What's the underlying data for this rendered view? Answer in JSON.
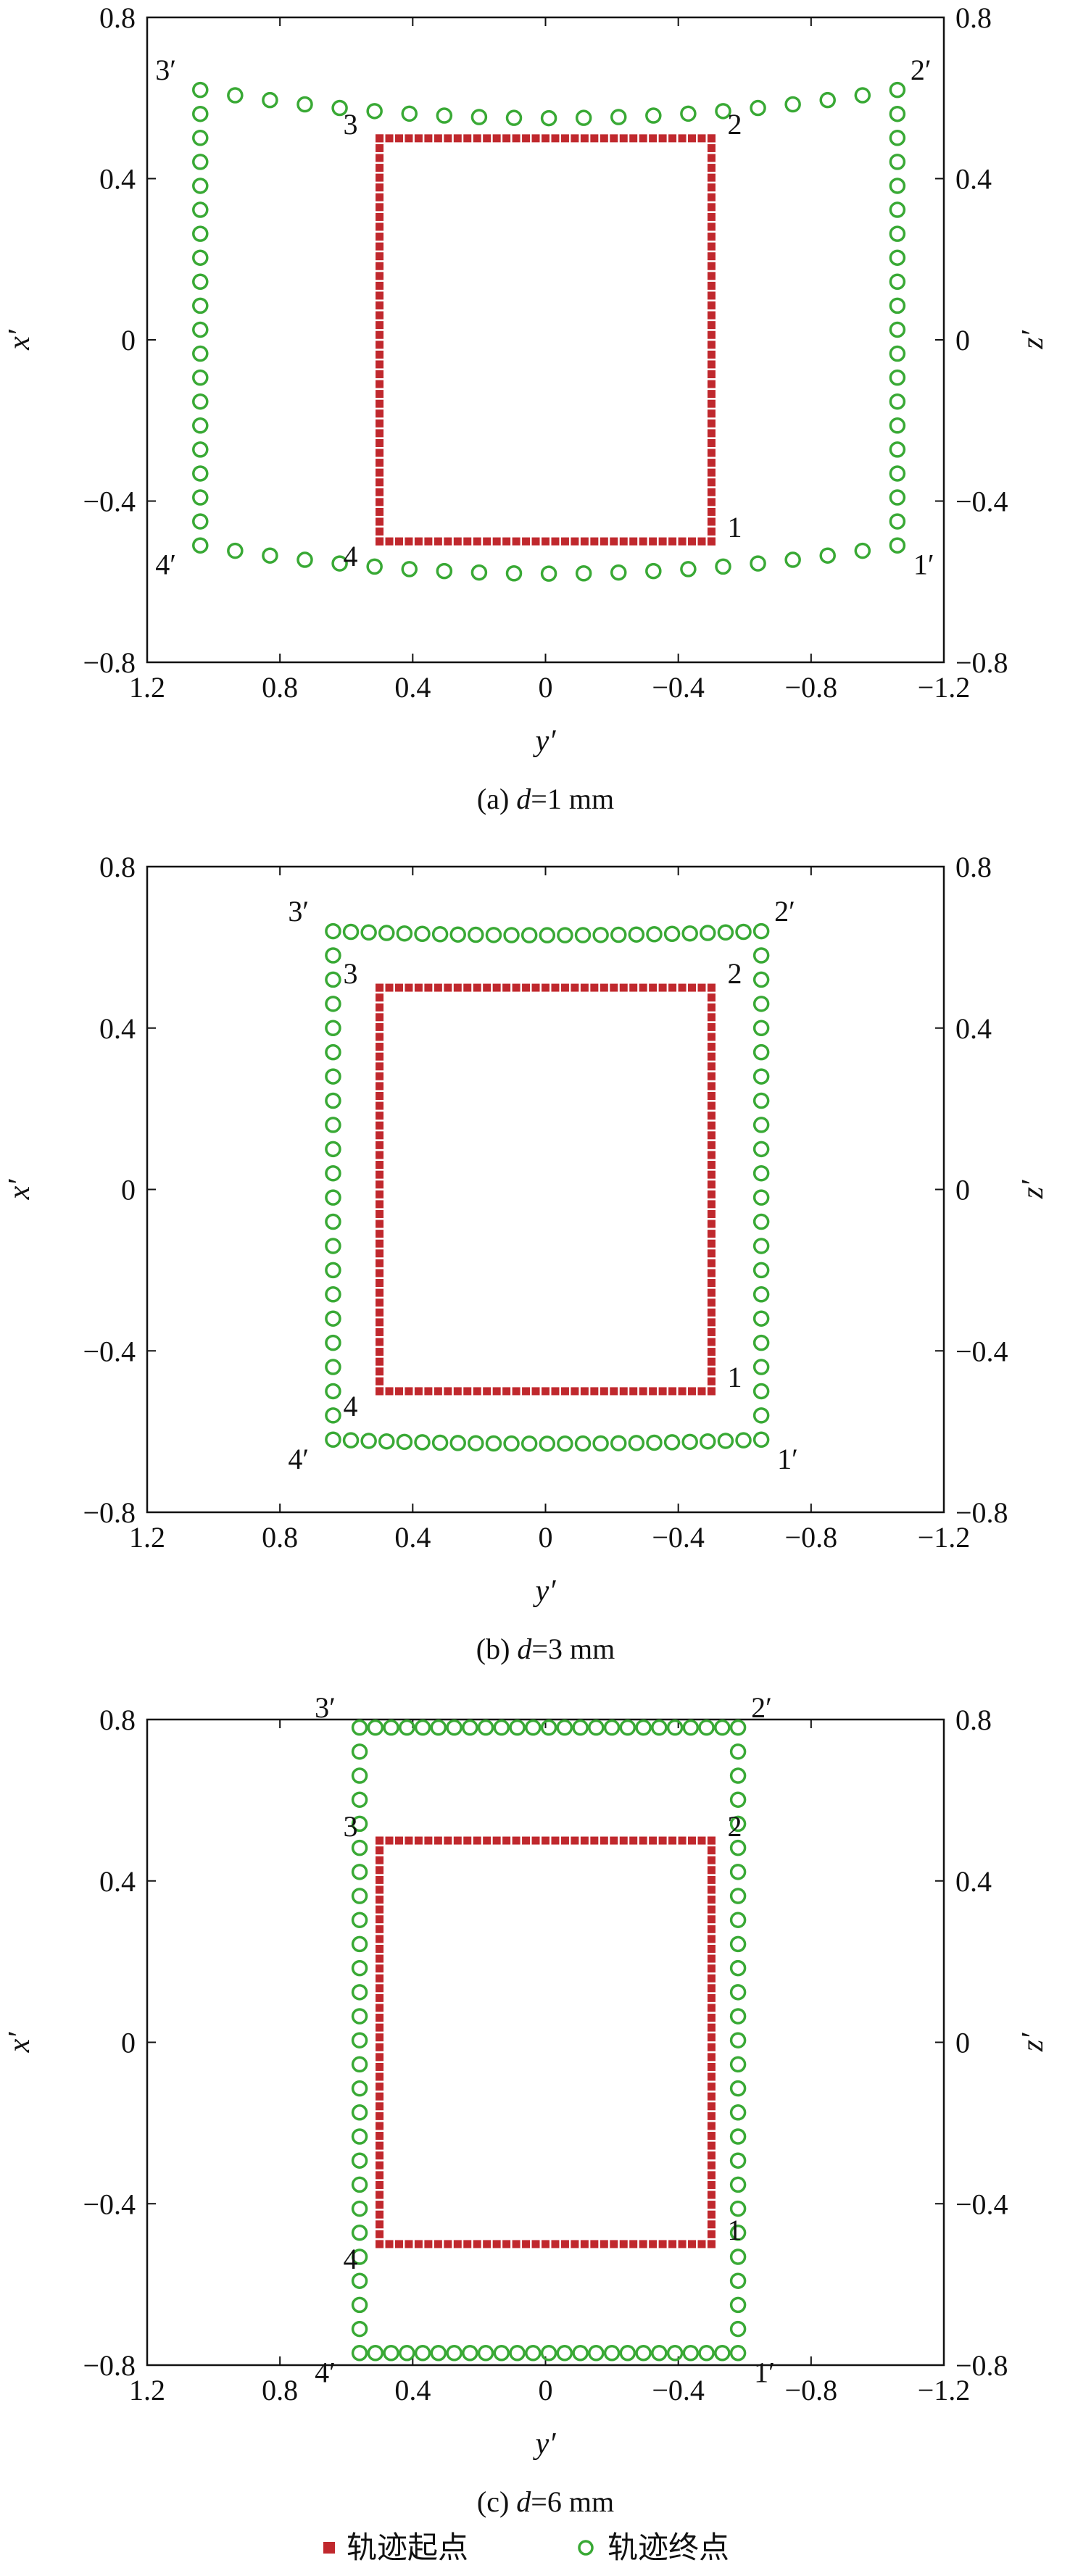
{
  "chart_data": [
    {
      "type": "scatter",
      "caption": "(a) d=1 mm",
      "caption_prefix": "(a) ",
      "caption_var": "d",
      "caption_rest": "=1 mm",
      "xlabel": "y′",
      "ylabel_left": "x′",
      "ylabel_right": "z′",
      "xlim": [
        1.2,
        -1.2
      ],
      "ylim": [
        -0.8,
        0.8
      ],
      "x_ticks": [
        "1.2",
        "0.8",
        "0.4",
        "0",
        "−0.4",
        "−0.8",
        "−1.2"
      ],
      "y_ticks": [
        "0.8",
        "0.4",
        "0",
        "−0.4",
        "−0.8"
      ],
      "start_corners": [
        {
          "label": "1",
          "y": -0.5,
          "x": -0.5
        },
        {
          "label": "2",
          "y": -0.5,
          "x": 0.5
        },
        {
          "label": "3",
          "y": 0.5,
          "x": 0.5
        },
        {
          "label": "4",
          "y": 0.5,
          "x": -0.5
        }
      ],
      "end_corners": [
        {
          "label": "1′",
          "y": -1.06,
          "x": -0.51
        },
        {
          "label": "2′",
          "y": -1.06,
          "x": 0.62
        },
        {
          "label": "3′",
          "y": 1.04,
          "x": 0.62
        },
        {
          "label": "4′",
          "y": 1.04,
          "x": -0.51
        }
      ],
      "end_sag": 0.07
    },
    {
      "type": "scatter",
      "caption": "(b) d=3 mm",
      "caption_prefix": "(b) ",
      "caption_var": "d",
      "caption_rest": "=3 mm",
      "xlabel": "y′",
      "ylabel_left": "x′",
      "ylabel_right": "z′",
      "xlim": [
        1.2,
        -1.2
      ],
      "ylim": [
        -0.8,
        0.8
      ],
      "x_ticks": [
        "1.2",
        "0.8",
        "0.4",
        "0",
        "−0.4",
        "−0.8",
        "−1.2"
      ],
      "y_ticks": [
        "0.8",
        "0.4",
        "0",
        "−0.4",
        "−0.8"
      ],
      "start_corners": [
        {
          "label": "1",
          "y": -0.5,
          "x": -0.5
        },
        {
          "label": "2",
          "y": -0.5,
          "x": 0.5
        },
        {
          "label": "3",
          "y": 0.5,
          "x": 0.5
        },
        {
          "label": "4",
          "y": 0.5,
          "x": -0.5
        }
      ],
      "end_corners": [
        {
          "label": "1′",
          "y": -0.65,
          "x": -0.62
        },
        {
          "label": "2′",
          "y": -0.65,
          "x": 0.64
        },
        {
          "label": "3′",
          "y": 0.64,
          "x": 0.64
        },
        {
          "label": "4′",
          "y": 0.64,
          "x": -0.62
        }
      ],
      "end_sag": 0.01
    },
    {
      "type": "scatter",
      "caption": "(c) d=6 mm",
      "caption_prefix": "(c) ",
      "caption_var": "d",
      "caption_rest": "=6 mm",
      "xlabel": "y′",
      "ylabel_left": "x′",
      "ylabel_right": "z′",
      "xlim": [
        1.2,
        -1.2
      ],
      "ylim": [
        -0.8,
        0.8
      ],
      "x_ticks": [
        "1.2",
        "0.8",
        "0.4",
        "0",
        "−0.4",
        "−0.8",
        "−1.2"
      ],
      "y_ticks": [
        "0.8",
        "0.4",
        "0",
        "−0.4",
        "−0.8"
      ],
      "start_corners": [
        {
          "label": "1",
          "y": -0.5,
          "x": -0.5
        },
        {
          "label": "2",
          "y": -0.5,
          "x": 0.5
        },
        {
          "label": "3",
          "y": 0.5,
          "x": 0.5
        },
        {
          "label": "4",
          "y": 0.5,
          "x": -0.5
        }
      ],
      "end_corners": [
        {
          "label": "1′",
          "y": -0.58,
          "x": -0.77
        },
        {
          "label": "2′",
          "y": -0.58,
          "x": 0.78
        },
        {
          "label": "3′",
          "y": 0.56,
          "x": 0.78
        },
        {
          "label": "4′",
          "y": 0.56,
          "x": -0.77
        }
      ],
      "end_sag": 0.0
    }
  ],
  "legend": {
    "start_label": "轨迹起点",
    "end_label": "轨迹终点",
    "start_color": "#c0282d",
    "end_color": "#39a935"
  }
}
